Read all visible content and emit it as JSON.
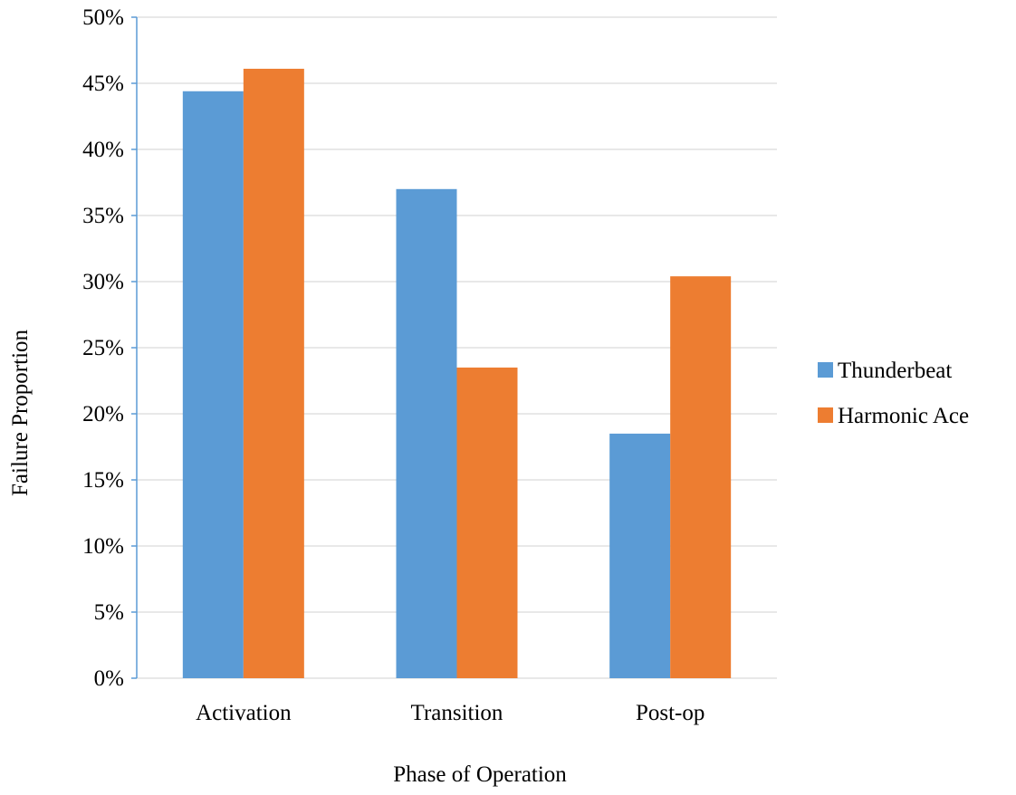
{
  "chart_data": {
    "type": "bar",
    "title": "",
    "xlabel": "Phase of Operation",
    "ylabel": "Failure Proportion",
    "categories": [
      "Activation",
      "Transition",
      "Post-op"
    ],
    "series": [
      {
        "name": "Thunderbeat",
        "values": [
          44.4,
          37.0,
          18.5
        ],
        "color": "#5b9bd5"
      },
      {
        "name": "Harmonic Ace",
        "values": [
          46.1,
          23.5,
          30.4
        ],
        "color": "#ed7d31"
      }
    ],
    "ylim": [
      0,
      50
    ],
    "ytick_step": 5,
    "ytick_labels": [
      "0%",
      "5%",
      "10%",
      "15%",
      "20%",
      "25%",
      "30%",
      "35%",
      "40%",
      "45%",
      "50%"
    ],
    "grid": true,
    "gridline_color": "#d9d9d9",
    "axis_color": "#5b9bd5",
    "legend_position": "right"
  }
}
